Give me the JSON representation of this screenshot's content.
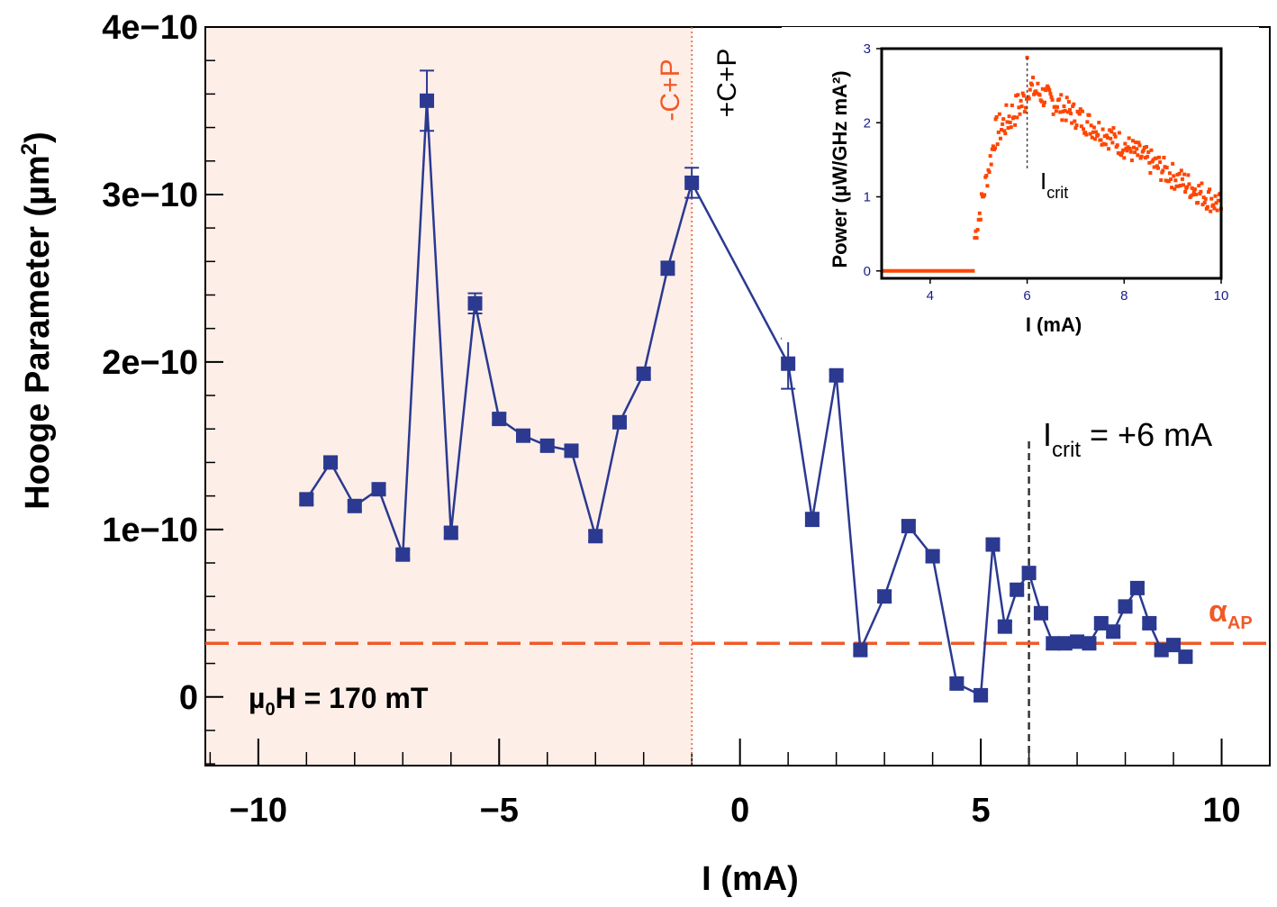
{
  "chart_data": [
    {
      "type": "line",
      "xlabel": "I (mA)",
      "ylabel": "Hooge Parameter (µm2)",
      "xlim": [
        -11.1,
        11.0
      ],
      "ylim": [
        -4.1e-11,
        4e-10
      ],
      "x_ticks": [
        "−10",
        "−5",
        "0",
        "5",
        "10"
      ],
      "y_ticks": [
        "0",
        "1e−10",
        "2e−10",
        "3e−10",
        "4e−10"
      ],
      "colors": {
        "series": "#2b3990",
        "hline": "#f05a28",
        "shade": "#fdeee8",
        "vline_left": "#f05a28",
        "vline_right": "#333333"
      },
      "series": [
        {
          "x": [
            -9.0,
            -8.5,
            -8.0,
            -7.5,
            -7.0,
            -6.5,
            -6.0,
            -5.5,
            -5.0,
            -4.5,
            -4.0,
            -3.5,
            -3.0,
            -2.5,
            -2.0,
            -1.5,
            -1.0,
            1.0,
            1.5,
            2.0,
            2.5,
            3.0,
            3.5,
            4.0,
            4.5,
            5.0,
            5.25,
            5.5,
            5.75,
            6.0,
            6.25,
            6.5,
            6.75,
            7.0,
            7.25,
            7.5,
            7.75,
            8.0,
            8.25,
            8.5,
            8.75,
            9.0,
            9.25
          ],
          "y": [
            1.18e-10,
            1.4e-10,
            1.14e-10,
            1.24e-10,
            8.5e-11,
            3.56e-10,
            9.8e-11,
            2.35e-10,
            1.66e-10,
            1.56e-10,
            1.5e-10,
            1.47e-10,
            9.6e-11,
            1.64e-10,
            1.93e-10,
            2.56e-10,
            3.07e-10,
            1.99e-10,
            1.06e-10,
            1.92e-10,
            2.8e-11,
            6e-11,
            1.02e-10,
            8.4e-11,
            8e-12,
            1e-12,
            9.1e-11,
            4.2e-11,
            6.4e-11,
            7.4e-11,
            5e-11,
            3.2e-11,
            3.2e-11,
            3.3e-11,
            3.2e-11,
            4.4e-11,
            3.9e-11,
            5.4e-11,
            6.5e-11,
            4.4e-11,
            2.8e-11,
            3.1e-11,
            2.4e-11
          ],
          "err": [
            3e-12,
            3e-12,
            3e-12,
            3e-12,
            3e-12,
            1.8e-11,
            3e-12,
            6e-12,
            3e-12,
            3e-12,
            3e-12,
            3e-12,
            3e-12,
            3e-12,
            3e-12,
            4e-12,
            9e-12,
            1.5e-11,
            4e-12,
            3e-12,
            3e-12,
            3e-12,
            3e-12,
            3e-12,
            3e-12,
            3e-12,
            3e-12,
            3e-12,
            3e-12,
            3e-12,
            3e-12,
            3e-12,
            3e-12,
            3e-12,
            3e-12,
            3e-12,
            3e-12,
            3e-12,
            3e-12,
            3e-12,
            3e-12,
            3e-12,
            3e-12
          ]
        }
      ],
      "shaded_region": {
        "x_from": -11.1,
        "x_to": -1.0
      },
      "vlines": [
        {
          "x": -1.0,
          "style": "dotted"
        },
        {
          "x": 6.0,
          "style": "dashed"
        }
      ],
      "hline": {
        "y": 3.2e-11,
        "style": "dashed",
        "label": "α",
        "label_sub": "AP"
      },
      "annotations": {
        "left_region": "-C+P",
        "right_region": "+C+P",
        "field_main": "µ",
        "field_sub": "0",
        "field_rest": "H = 170 mT",
        "crit_main": "I",
        "crit_sub": "crit",
        "crit_rest": " = +6 mA"
      }
    },
    {
      "type": "scatter",
      "xlabel": "I (mA)",
      "ylabel": "Power (µW/GHz mA²)",
      "xlim": [
        3.0,
        10.0
      ],
      "ylim": [
        -0.1,
        3.0
      ],
      "x_ticks": [
        "4",
        "6",
        "8",
        "10"
      ],
      "y_ticks": [
        "0",
        "1",
        "2",
        "3"
      ],
      "colors": {
        "points": "#ff4500"
      },
      "critical_line_x": 6.0,
      "crit_label_main": "I",
      "crit_label_sub": "crit",
      "threshold_x": 4.92,
      "peak": {
        "x": 6.0,
        "y": 2.88
      },
      "end": {
        "x": 10.0,
        "y": 0.85
      }
    }
  ]
}
